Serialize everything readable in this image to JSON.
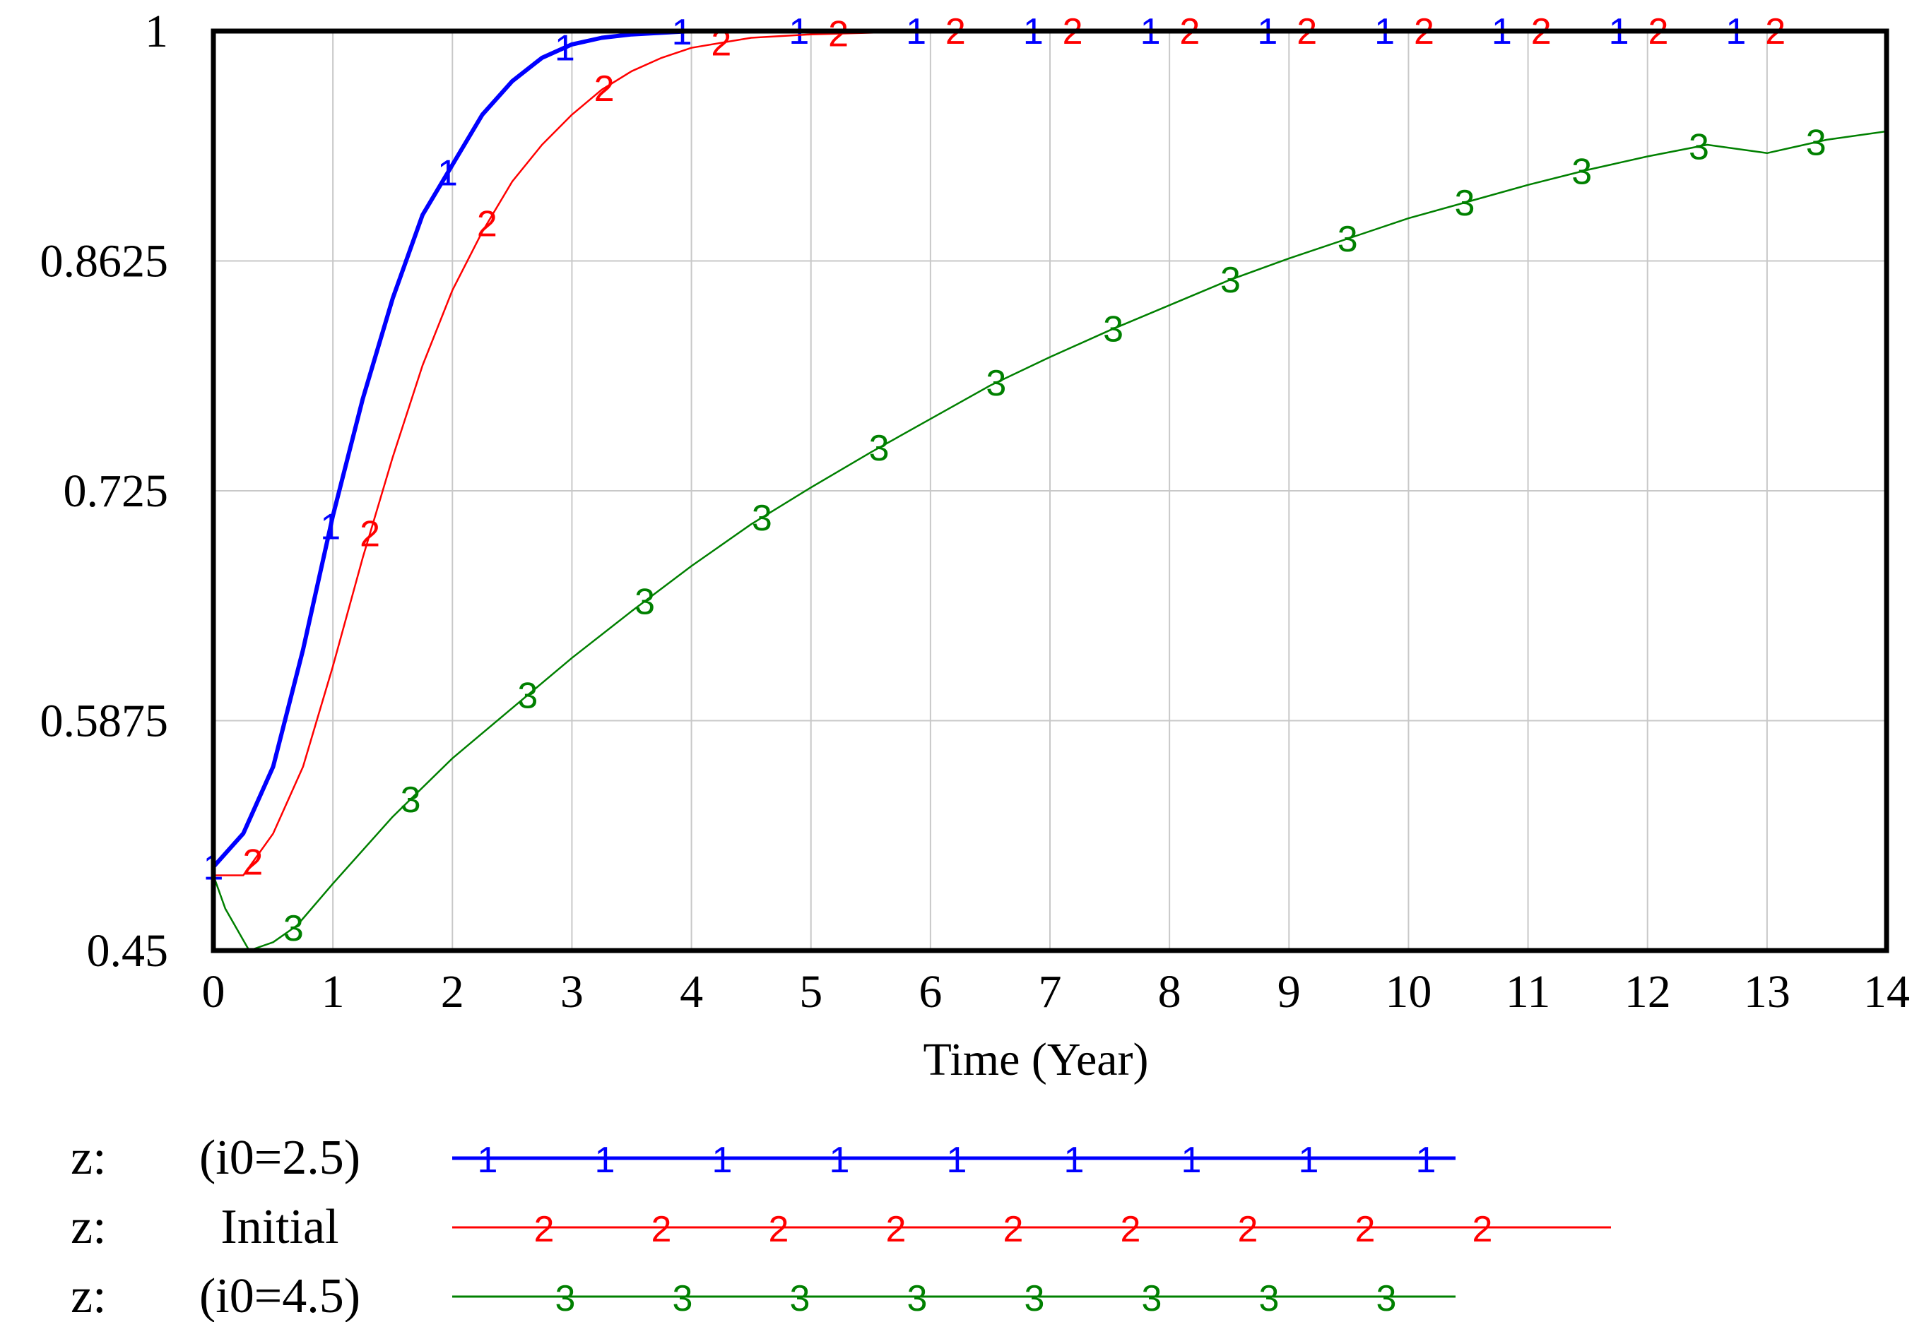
{
  "chart_data": {
    "type": "line",
    "title": "",
    "xlabel": "Time (Year)",
    "ylabel": "",
    "xlim": [
      0,
      14
    ],
    "ylim": [
      0.45,
      1.0
    ],
    "x_ticks": [
      "0",
      "1",
      "2",
      "3",
      "4",
      "5",
      "6",
      "7",
      "8",
      "9",
      "10",
      "11",
      "12",
      "13",
      "14"
    ],
    "y_ticks": [
      "1",
      "0.8625",
      "0.725",
      "0.5875",
      "0.45"
    ],
    "grid": true,
    "legend_position": "bottom",
    "series": [
      {
        "name": "(i0=2.5)",
        "legend_prefix": "z:",
        "marker": "1",
        "color": "#0000ff",
        "x": [
          0,
          0.25,
          0.5,
          0.75,
          1,
          1.25,
          1.5,
          1.75,
          2,
          2.25,
          2.5,
          2.75,
          3,
          3.25,
          3.5,
          4,
          5,
          6,
          7,
          8,
          9,
          10,
          11,
          12,
          13,
          14
        ],
        "y": [
          0.5,
          0.52,
          0.56,
          0.63,
          0.71,
          0.78,
          0.84,
          0.89,
          0.92,
          0.95,
          0.97,
          0.984,
          0.992,
          0.996,
          0.998,
          1.0,
          1.0,
          1.0,
          1.0,
          1.0,
          1.0,
          1.0,
          1.0,
          1.0,
          1.0,
          1.0
        ]
      },
      {
        "name": "Initial",
        "legend_prefix": "z:",
        "marker": "2",
        "color": "#ff0000",
        "x": [
          0,
          0.25,
          0.5,
          0.75,
          1,
          1.25,
          1.5,
          1.75,
          2,
          2.25,
          2.5,
          2.75,
          3,
          3.25,
          3.5,
          3.75,
          4,
          4.5,
          5,
          5.5,
          6,
          7,
          8,
          9,
          10,
          11,
          12,
          13,
          14
        ],
        "y": [
          0.495,
          0.495,
          0.52,
          0.56,
          0.62,
          0.685,
          0.745,
          0.8,
          0.845,
          0.88,
          0.91,
          0.932,
          0.95,
          0.965,
          0.976,
          0.984,
          0.99,
          0.996,
          0.998,
          0.999,
          1.0,
          1.0,
          1.0,
          1.0,
          1.0,
          1.0,
          1.0,
          1.0,
          1.0
        ]
      },
      {
        "name": "(i0=4.5)",
        "legend_prefix": "z:",
        "marker": "3",
        "color": "#008000",
        "x": [
          0,
          0.1,
          0.3,
          0.5,
          0.7,
          1,
          1.5,
          2,
          2.5,
          3,
          3.5,
          4,
          4.5,
          5,
          5.5,
          6,
          6.5,
          7,
          7.5,
          8,
          8.5,
          9,
          9.5,
          10,
          10.5,
          11,
          11.5,
          12,
          12.5,
          13,
          13.5,
          14
        ],
        "y": [
          0.495,
          0.475,
          0.45,
          0.455,
          0.465,
          0.49,
          0.53,
          0.565,
          0.595,
          0.625,
          0.653,
          0.68,
          0.705,
          0.727,
          0.748,
          0.768,
          0.788,
          0.805,
          0.821,
          0.836,
          0.851,
          0.864,
          0.876,
          0.888,
          0.898,
          0.908,
          0.917,
          0.925,
          0.932,
          0.927,
          0.935,
          0.94
        ]
      }
    ]
  }
}
